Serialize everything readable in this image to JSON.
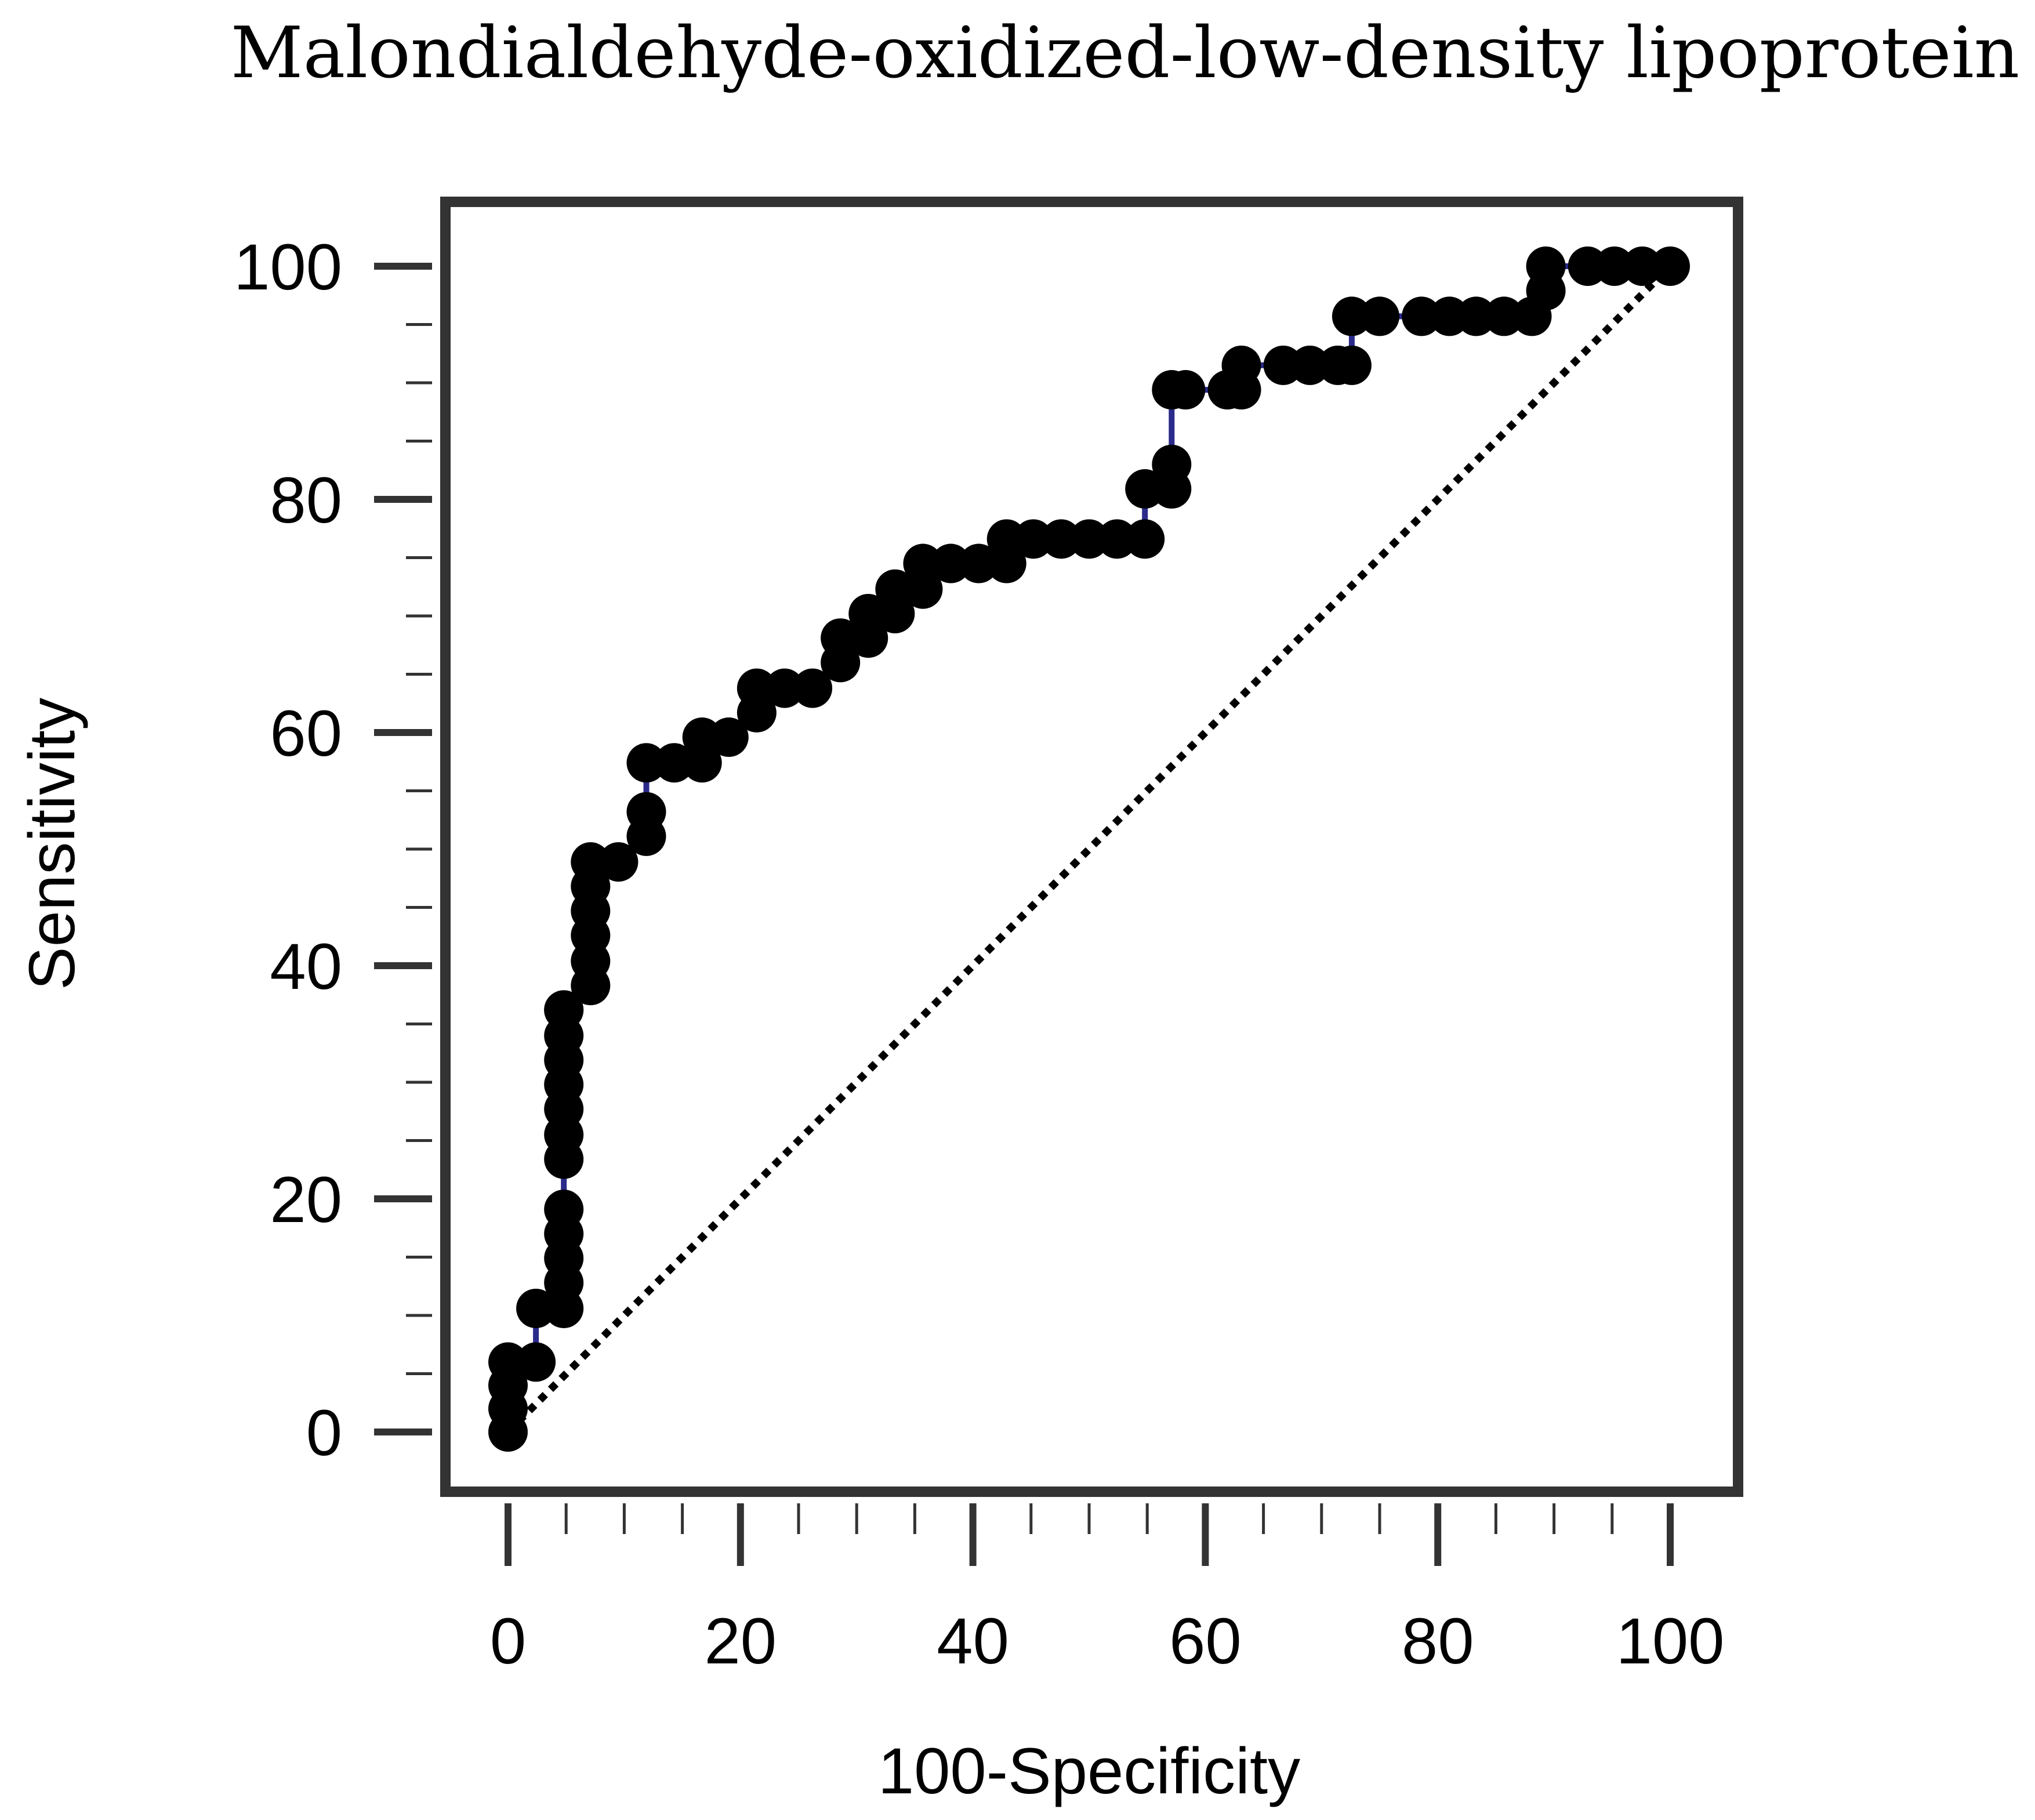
{
  "chart_data": {
    "type": "line",
    "title": "Malondialdehyde-oxidized-low-density lipoprotein",
    "xlabel": "100-Specificity",
    "ylabel": "Sensitivity",
    "xlim": [
      0,
      100
    ],
    "ylim": [
      0,
      100
    ],
    "x_ticks": [
      "0",
      "20",
      "40",
      "60",
      "80",
      "100"
    ],
    "y_ticks": [
      "0",
      "20",
      "40",
      "60",
      "80",
      "100"
    ],
    "grid": false,
    "colors": {
      "curve_line": "#2b2b8c",
      "markers": "#000000",
      "reference": "#000000",
      "frame": "#333333"
    },
    "series": [
      {
        "style": "line-with-markers",
        "x": [
          0,
          0,
          0,
          0,
          2.4,
          2.4,
          4.8,
          4.8,
          4.8,
          4.8,
          4.8,
          4.8,
          4.8,
          4.8,
          4.8,
          4.8,
          4.8,
          4.8,
          4.8,
          7.1,
          7.1,
          7.1,
          7.1,
          7.1,
          7.1,
          9.5,
          11.9,
          11.9,
          11.9,
          14.3,
          16.7,
          16.7,
          19.0,
          21.4,
          21.4,
          23.8,
          26.2,
          28.6,
          28.6,
          31.0,
          31.0,
          33.3,
          33.3,
          35.7,
          35.7,
          38.1,
          40.5,
          42.9,
          42.9,
          45.2,
          47.6,
          50.0,
          52.4,
          54.8,
          54.8,
          57.1,
          57.1,
          57.1,
          58.3,
          61.9,
          63.1,
          63.1,
          66.7,
          69.0,
          71.4,
          72.6,
          72.6,
          75.0,
          78.6,
          81.0,
          83.3,
          85.7,
          88.1,
          89.3,
          89.3,
          92.9,
          95.2,
          97.6,
          100
        ],
        "y": [
          0,
          2,
          4,
          6,
          6,
          10.6,
          10.6,
          12.8,
          14.9,
          17.0,
          19.1,
          23.4,
          25.5,
          27.7,
          29.8,
          31.9,
          34.0,
          36.2,
          36.2,
          38.3,
          40.4,
          42.6,
          44.7,
          46.8,
          48.9,
          48.9,
          51.1,
          53.2,
          57.4,
          57.4,
          57.4,
          59.6,
          59.6,
          61.7,
          63.8,
          63.8,
          63.8,
          66.0,
          68.1,
          68.1,
          70.2,
          70.2,
          72.3,
          72.3,
          74.5,
          74.5,
          74.5,
          74.5,
          76.6,
          76.6,
          76.6,
          76.6,
          76.6,
          76.6,
          80.9,
          80.9,
          83.0,
          89.4,
          89.4,
          89.4,
          89.4,
          91.5,
          91.5,
          91.5,
          91.5,
          91.5,
          95.7,
          95.7,
          95.7,
          95.7,
          95.7,
          95.7,
          95.7,
          97.9,
          100,
          100,
          100,
          100,
          100
        ]
      },
      {
        "style": "dotted-diagonal",
        "x": [
          0,
          100
        ],
        "y": [
          0,
          100
        ]
      }
    ]
  }
}
